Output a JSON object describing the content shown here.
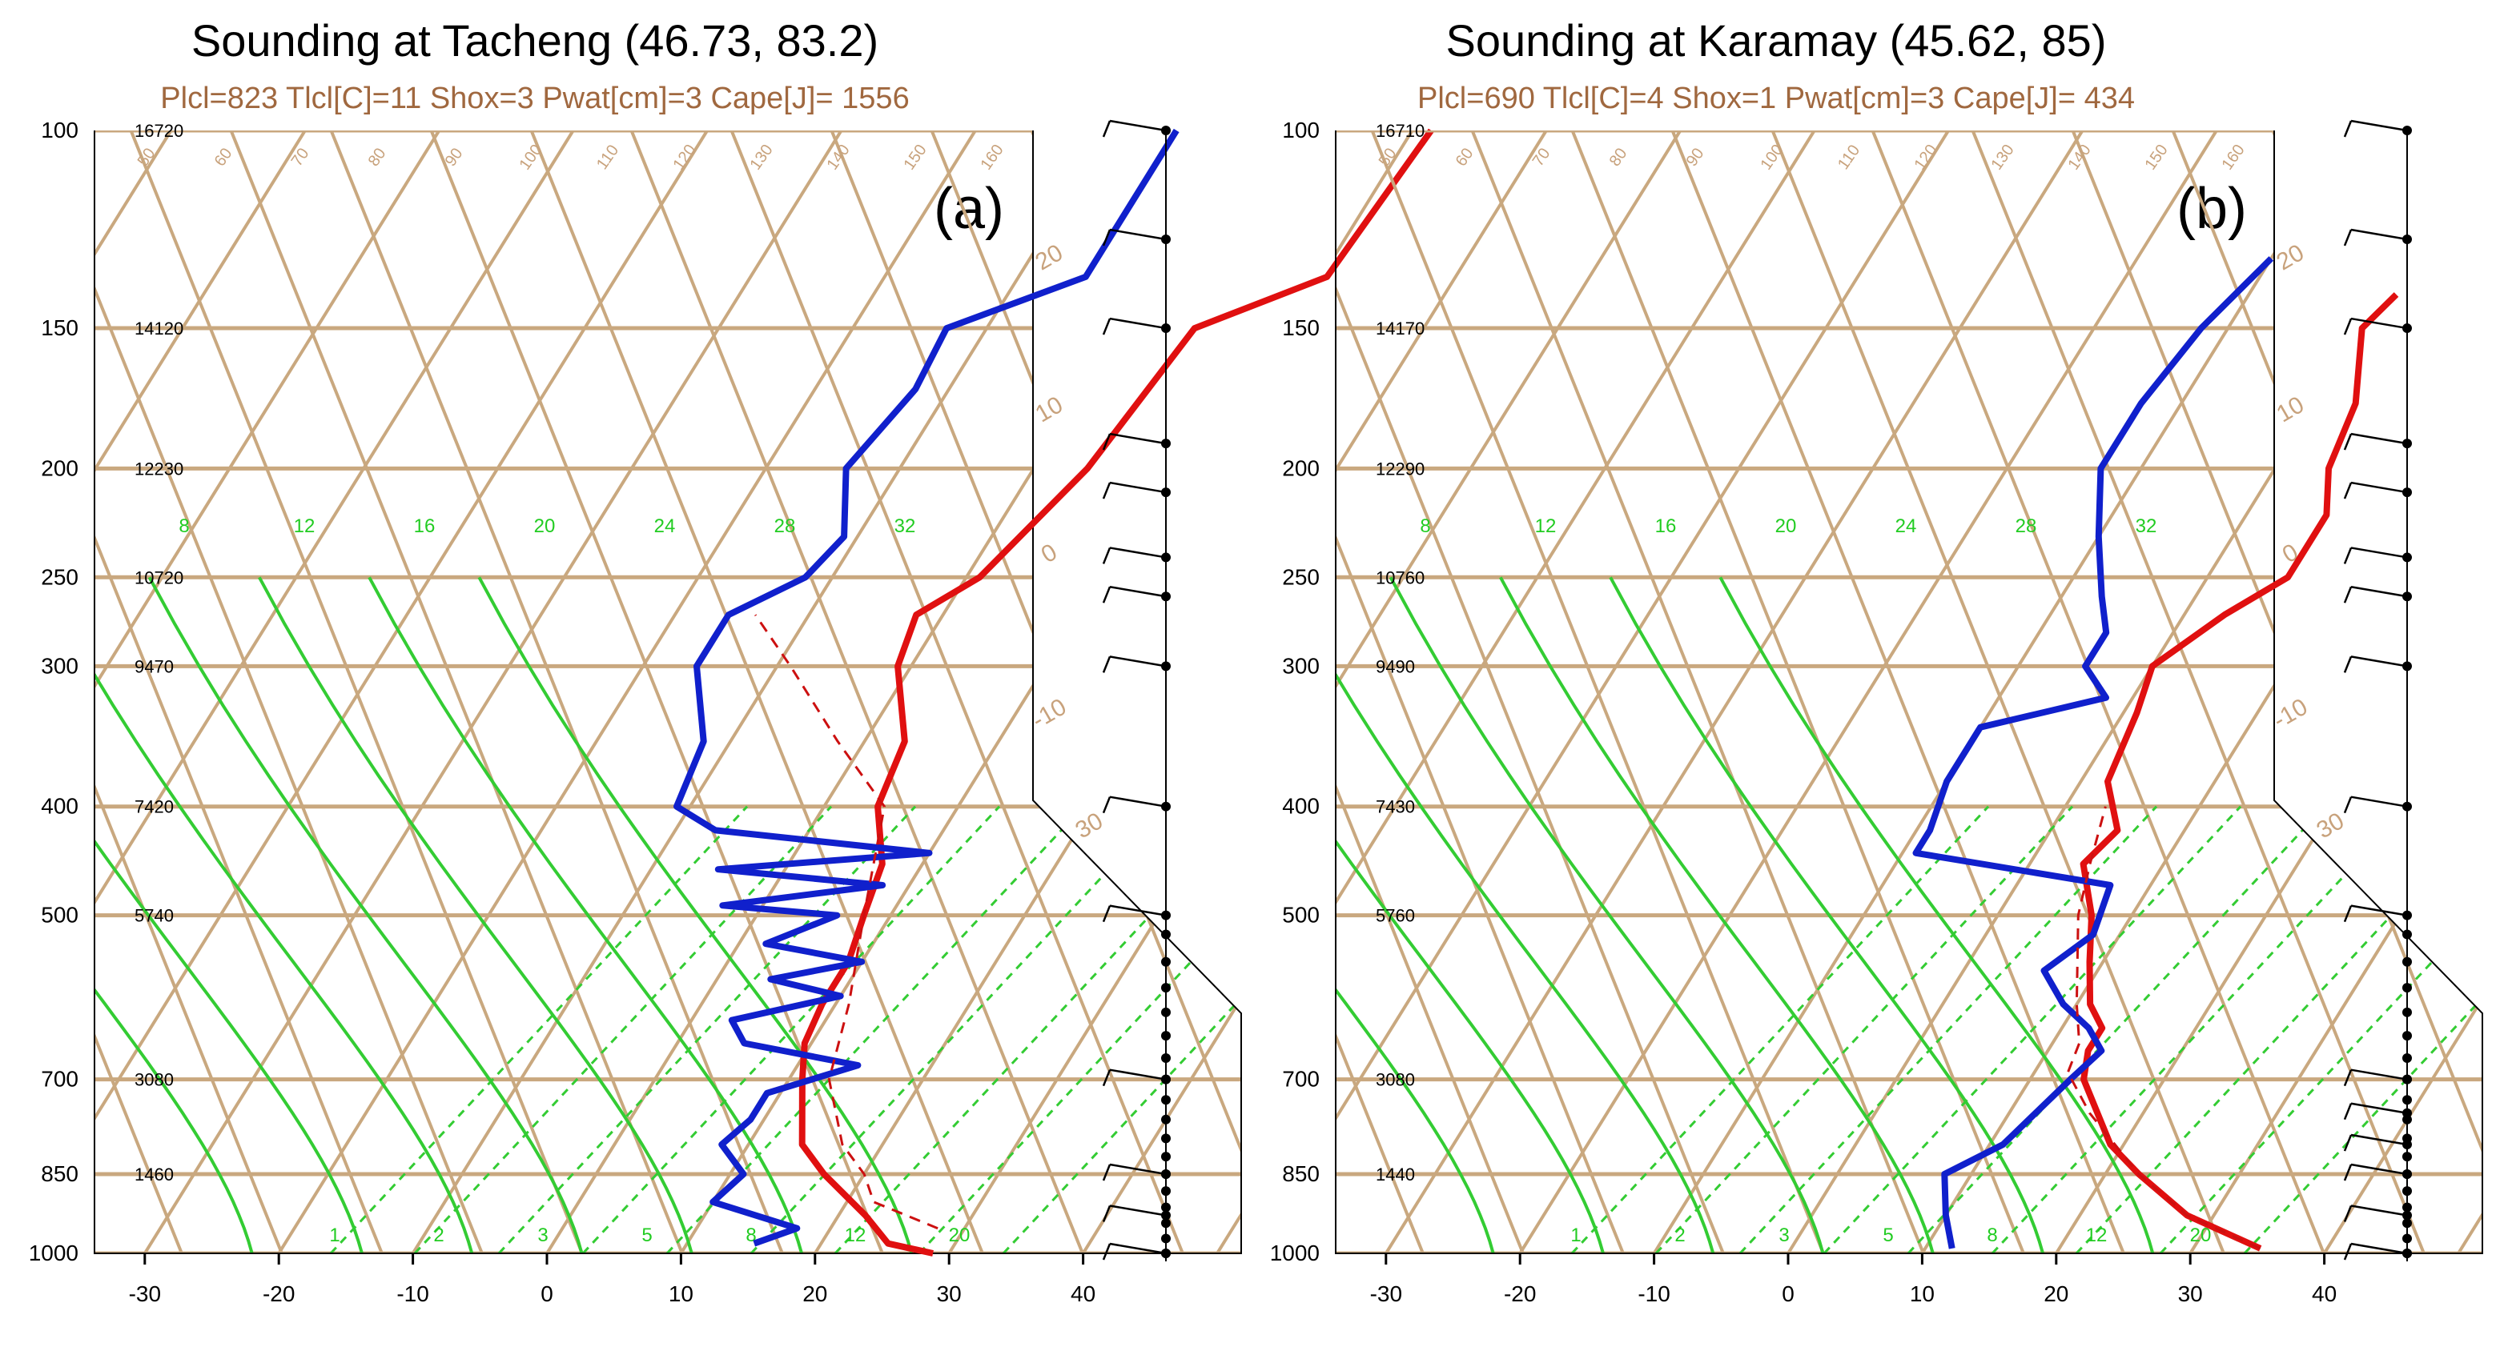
{
  "colors": {
    "grid": "#c9a87f",
    "moist": "#33cc33",
    "temperature": "#e01010",
    "dewpoint": "#1020cc",
    "parcel": "#cc1010",
    "subtitle": "#a0683f"
  },
  "chart_data": [
    {
      "type": "line",
      "panel_label": "(a)",
      "title": "Sounding at Tacheng (46.73, 83.2)",
      "subtitle": "Plcl=823 Tlcl[C]=11 Shox=3 Pwat[cm]=3 Cape[J]= 1556",
      "xlabel": "",
      "ylabel": "",
      "xlim": [
        -35,
        52
      ],
      "pressure_ticks": [
        100,
        150,
        200,
        250,
        300,
        400,
        500,
        700,
        850,
        1000
      ],
      "temperature_ticks": [
        -30,
        -20,
        -10,
        0,
        10,
        20,
        30,
        40
      ],
      "heights": [
        {
          "p": 100,
          "h": "16720"
        },
        {
          "p": 150,
          "h": "14120"
        },
        {
          "p": 200,
          "h": "12230"
        },
        {
          "p": 250,
          "h": "10720"
        },
        {
          "p": 300,
          "h": "9470"
        },
        {
          "p": 400,
          "h": "7420"
        },
        {
          "p": 500,
          "h": "5740"
        },
        {
          "p": 700,
          "h": "3080"
        },
        {
          "p": 850,
          "h": "1460"
        }
      ],
      "mixing_ratio_labels": [
        "1",
        "2",
        "3",
        "5",
        "8",
        "12",
        "20"
      ],
      "moist_adiabat_labels": [
        "8",
        "12",
        "16",
        "20",
        "24",
        "28",
        "32"
      ],
      "dry_adiabat_labels": [
        "50",
        "60",
        "70",
        "80",
        "90",
        "100",
        "110",
        "120",
        "130",
        "140",
        "150",
        "160"
      ],
      "isotherm_labels": [
        "-10",
        "0",
        "10",
        "20",
        "30"
      ],
      "series": [
        {
          "name": "temperature",
          "points": [
            [
              1000,
              28.8
            ],
            [
              980,
              25
            ],
            [
              925,
              22
            ],
            [
              850,
              17
            ],
            [
              800,
              14
            ],
            [
              700,
              11
            ],
            [
              650,
              9.5
            ],
            [
              600,
              9
            ],
            [
              550,
              9
            ],
            [
              500,
              8
            ],
            [
              450,
              7
            ],
            [
              400,
              4
            ],
            [
              350,
              3
            ],
            [
              300,
              -1
            ],
            [
              270,
              -2
            ],
            [
              250,
              1
            ],
            [
              200,
              4
            ],
            [
              150,
              5.5
            ],
            [
              135,
              13
            ],
            [
              100,
              14
            ]
          ]
        },
        {
          "name": "dewpoint",
          "points": [
            [
              980,
              15
            ],
            [
              950,
              17.5
            ],
            [
              900,
              10
            ],
            [
              850,
              11
            ],
            [
              800,
              8
            ],
            [
              760,
              9
            ],
            [
              720,
              9
            ],
            [
              680,
              14.5
            ],
            [
              650,
              5
            ],
            [
              620,
              3
            ],
            [
              590,
              10
            ],
            [
              570,
              4
            ],
            [
              550,
              10
            ],
            [
              530,
              2
            ],
            [
              500,
              6
            ],
            [
              490,
              -3
            ],
            [
              470,
              8
            ],
            [
              455,
              -5
            ],
            [
              440,
              10
            ],
            [
              420,
              -7
            ],
            [
              400,
              -11
            ],
            [
              350,
              -12
            ],
            [
              300,
              -16
            ],
            [
              270,
              -16
            ],
            [
              250,
              -12
            ],
            [
              230,
              -11
            ],
            [
              200,
              -14
            ],
            [
              170,
              -12.5
            ],
            [
              150,
              -13
            ],
            [
              135,
              -5
            ],
            [
              100,
              -5
            ]
          ]
        },
        {
          "name": "parcel",
          "points": [
            [
              950,
              28
            ],
            [
              900,
              22
            ],
            [
              850,
              20
            ],
            [
              800,
              17
            ],
            [
              700,
              13
            ],
            [
              600,
              11
            ],
            [
              500,
              8
            ],
            [
              400,
              4.5
            ],
            [
              350,
              -2
            ],
            [
              300,
              -9
            ],
            [
              270,
              -14
            ]
          ]
        }
      ],
      "wind_pressures": [
        100,
        125,
        150,
        190,
        210,
        240,
        260,
        300,
        400,
        500,
        700,
        850,
        925,
        1000
      ]
    },
    {
      "type": "line",
      "panel_label": "(b)",
      "title": "Sounding at Karamay (45.62, 85)",
      "subtitle": "Plcl=690 Tlcl[C]=4 Shox=1 Pwat[cm]=3 Cape[J]= 434",
      "xlabel": "",
      "ylabel": "",
      "xlim": [
        -35,
        52
      ],
      "pressure_ticks": [
        100,
        150,
        200,
        250,
        300,
        400,
        500,
        700,
        850,
        1000
      ],
      "temperature_ticks": [
        -30,
        -20,
        -10,
        0,
        10,
        20,
        30,
        40
      ],
      "heights": [
        {
          "p": 100,
          "h": "16710"
        },
        {
          "p": 150,
          "h": "14170"
        },
        {
          "p": 200,
          "h": "12290"
        },
        {
          "p": 250,
          "h": "10760"
        },
        {
          "p": 300,
          "h": "9490"
        },
        {
          "p": 400,
          "h": "7430"
        },
        {
          "p": 500,
          "h": "5760"
        },
        {
          "p": 700,
          "h": "3080"
        },
        {
          "p": 850,
          "h": "1440"
        }
      ],
      "mixing_ratio_labels": [
        "1",
        "2",
        "3",
        "5",
        "8",
        "12",
        "20"
      ],
      "moist_adiabat_labels": [
        "8",
        "12",
        "16",
        "20",
        "24",
        "28",
        "32"
      ],
      "dry_adiabat_labels": [
        "50",
        "60",
        "70",
        "80",
        "90",
        "100",
        "110",
        "120",
        "130",
        "140",
        "150",
        "160"
      ],
      "isotherm_labels": [
        "-10",
        "0",
        "10",
        "20",
        "30"
      ],
      "series": [
        {
          "name": "temperature",
          "points": [
            [
              990,
              35
            ],
            [
              925,
              28
            ],
            [
              850,
              22.5
            ],
            [
              800,
              19
            ],
            [
              700,
              14
            ],
            [
              660,
              13
            ],
            [
              630,
              13
            ],
            [
              600,
              11
            ],
            [
              550,
              9
            ],
            [
              500,
              7
            ],
            [
              450,
              4
            ],
            [
              420,
              5
            ],
            [
              380,
              2
            ],
            [
              330,
              1
            ],
            [
              300,
              0
            ],
            [
              270,
              3
            ],
            [
              250,
              6
            ],
            [
              220,
              6
            ],
            [
              200,
              4
            ],
            [
              175,
              3
            ],
            [
              150,
              0
            ],
            [
              140,
              1
            ]
          ]
        },
        {
          "name": "dewpoint",
          "points": [
            [
              990,
              12
            ],
            [
              925,
              10
            ],
            [
              850,
              8
            ],
            [
              800,
              11
            ],
            [
              700,
              13
            ],
            [
              660,
              14
            ],
            [
              630,
              12
            ],
            [
              600,
              9
            ],
            [
              560,
              6
            ],
            [
              520,
              8
            ],
            [
              470,
              7
            ],
            [
              440,
              -9
            ],
            [
              420,
              -9
            ],
            [
              380,
              -10
            ],
            [
              340,
              -10
            ],
            [
              320,
              -2
            ],
            [
              300,
              -5
            ],
            [
              280,
              -5
            ],
            [
              260,
              -7
            ],
            [
              230,
              -10
            ],
            [
              200,
              -13
            ],
            [
              175,
              -13
            ],
            [
              150,
              -12
            ],
            [
              130,
              -10
            ]
          ]
        },
        {
          "name": "parcel",
          "points": [
            [
              990,
              35
            ],
            [
              925,
              28
            ],
            [
              850,
              22.5
            ],
            [
              750,
              16
            ],
            [
              690,
              12.5
            ],
            [
              650,
              12
            ],
            [
              600,
              10
            ],
            [
              500,
              6
            ],
            [
              450,
              4.5
            ],
            [
              400,
              3
            ]
          ]
        }
      ],
      "wind_pressures": [
        100,
        125,
        150,
        190,
        210,
        240,
        260,
        300,
        400,
        500,
        700,
        750,
        800,
        850,
        925,
        1000
      ]
    }
  ]
}
